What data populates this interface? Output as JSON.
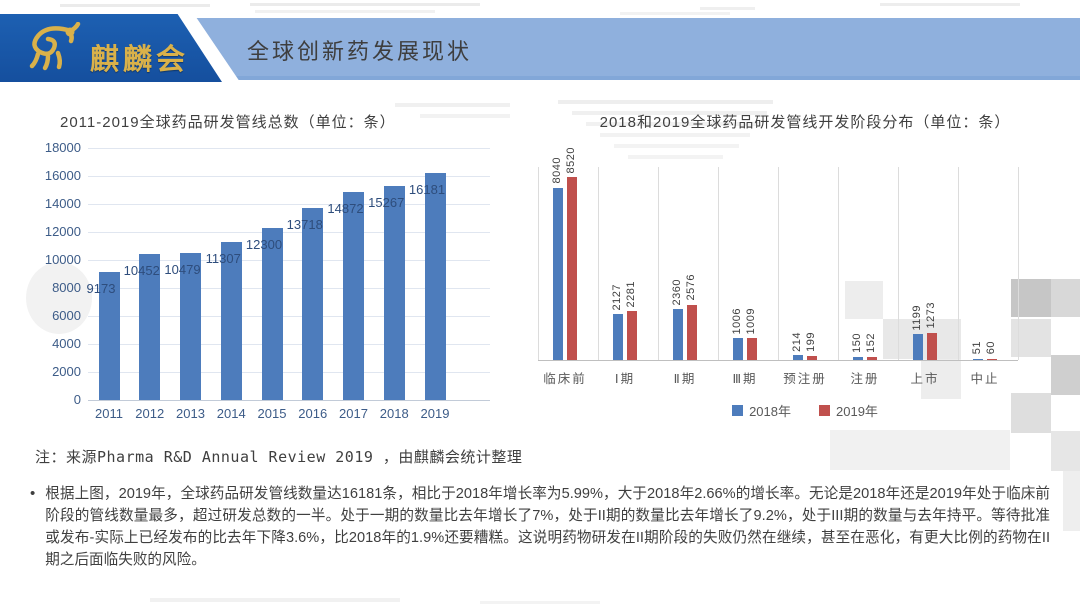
{
  "header": {
    "logo_text": "麒麟会",
    "title": "全球创新药发展现状"
  },
  "colors": {
    "banner_blue": "#1a57a8",
    "band_blue": "#8fb0dd",
    "gold": "#d9b14a",
    "bar_blue": "#4d7cbc",
    "bar_red": "#c0504d",
    "axis_text_blue": "#3d5c88",
    "body_text": "#3f3f3f"
  },
  "note": "注：来源Pharma R&D Annual Review 2019 ，由麒麟会统计整理",
  "bullet": {
    "marker": "•",
    "text": "根据上图，2019年，全球药品研发管线数量达16181条，相比于2018年增长率为5.99%，大于2018年2.66%的增长率。无论是2018年还是2019年处于临床前阶段的管线数量最多，超过研发总数的一半。处于一期的数量比去年增长了7%，处于II期的数量比去年增长了9.2%，处于III期的数量与去年持平。等待批准或发布-实际上已经发布的比去年下降3.6%，比2018年的1.9%还要糟糕。这说明药物研发在II期阶段的失败仍然在继续，甚至在恶化，有更大比例的药物在II期之后面临失败的风险。"
  },
  "chart_data": [
    {
      "type": "bar",
      "title": "2011-2019全球药品研发管线总数（单位：条）",
      "categories": [
        "2011",
        "2012",
        "2013",
        "2014",
        "2015",
        "2016",
        "2017",
        "2018",
        "2019"
      ],
      "values": [
        9173,
        10452,
        10479,
        11307,
        12300,
        13718,
        14872,
        15267,
        16181
      ],
      "xlabel": "",
      "ylabel": "",
      "ylim": [
        0,
        18000
      ],
      "ytick_step": 2000,
      "grid": "horizontal",
      "legend": "none",
      "bar_color": "#4d7cbc",
      "value_labels": "shown"
    },
    {
      "type": "bar",
      "title": "2018和2019全球药品研发管线开发阶段分布（单位：条）",
      "categories": [
        "临床前",
        "Ⅰ期",
        "Ⅱ期",
        "Ⅲ期",
        "预注册",
        "注册",
        "上市",
        "中止"
      ],
      "series": [
        {
          "name": "2018年",
          "color": "#4d7cbc",
          "values": [
            8040,
            2127,
            2360,
            1006,
            214,
            150,
            1199,
            51
          ]
        },
        {
          "name": "2019年",
          "color": "#c0504d",
          "values": [
            8520,
            2281,
            2576,
            1009,
            199,
            152,
            1273,
            60
          ]
        }
      ],
      "xlabel": "",
      "ylabel": "",
      "ylim": [
        0,
        9000
      ],
      "grid": "vertical",
      "legend_position": "bottom",
      "value_labels": "rotated-90"
    }
  ]
}
